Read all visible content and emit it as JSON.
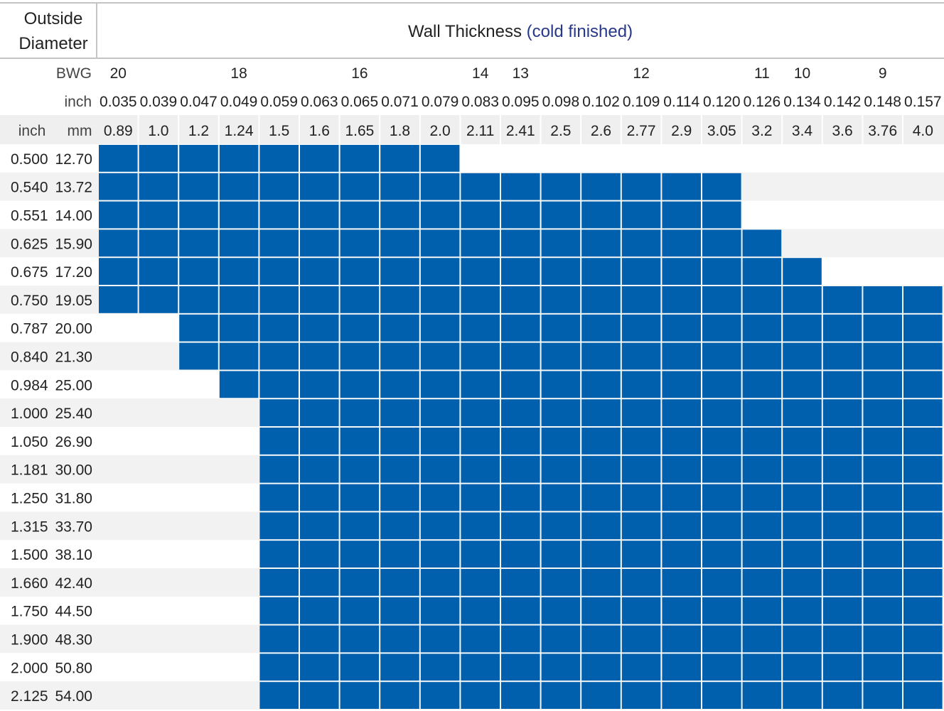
{
  "chart_data": {
    "type": "table",
    "title": "Wall Thickness",
    "title_note": "(cold finished)",
    "corner_label": [
      "Outside",
      "Diameter"
    ],
    "row_label_bwg": "BWG",
    "row_label_inch": "inch",
    "od_header_inch": "inch",
    "od_header_mm": "mm",
    "bwg": [
      "20",
      "",
      "",
      "18",
      "",
      "",
      "16",
      "",
      "",
      "14",
      "13",
      "",
      "",
      "12",
      "",
      "",
      "11",
      "10",
      "",
      "9",
      ""
    ],
    "wall_inch": [
      "0.035",
      "0.039",
      "0.047",
      "0.049",
      "0.059",
      "0.063",
      "0.065",
      "0.071",
      "0.079",
      "0.083",
      "0.095",
      "0.098",
      "0.102",
      "0.109",
      "0.114",
      "0.120",
      "0.126",
      "0.134",
      "0.142",
      "0.148",
      "0.157"
    ],
    "wall_mm": [
      "0.89",
      "1.0",
      "1.2",
      "1.24",
      "1.5",
      "1.6",
      "1.65",
      "1.8",
      "2.0",
      "2.11",
      "2.41",
      "2.5",
      "2.6",
      "2.77",
      "2.9",
      "3.05",
      "3.2",
      "3.4",
      "3.6",
      "3.76",
      "4.0"
    ],
    "rows": [
      {
        "inch": "0.500",
        "mm": "12.70",
        "available": [
          0,
          8
        ]
      },
      {
        "inch": "0.540",
        "mm": "13.72",
        "available": [
          0,
          15
        ]
      },
      {
        "inch": "0.551",
        "mm": "14.00",
        "available": [
          0,
          15
        ]
      },
      {
        "inch": "0.625",
        "mm": "15.90",
        "available": [
          0,
          16
        ]
      },
      {
        "inch": "0.675",
        "mm": "17.20",
        "available": [
          0,
          17
        ]
      },
      {
        "inch": "0.750",
        "mm": "19.05",
        "available": [
          0,
          20
        ]
      },
      {
        "inch": "0.787",
        "mm": "20.00",
        "available": [
          2,
          20
        ]
      },
      {
        "inch": "0.840",
        "mm": "21.30",
        "available": [
          2,
          20
        ]
      },
      {
        "inch": "0.984",
        "mm": "25.00",
        "available": [
          3,
          20
        ]
      },
      {
        "inch": "1.000",
        "mm": "25.40",
        "available": [
          4,
          20
        ]
      },
      {
        "inch": "1.050",
        "mm": "26.90",
        "available": [
          4,
          20
        ]
      },
      {
        "inch": "1.181",
        "mm": "30.00",
        "available": [
          4,
          20
        ]
      },
      {
        "inch": "1.250",
        "mm": "31.80",
        "available": [
          4,
          20
        ]
      },
      {
        "inch": "1.315",
        "mm": "33.70",
        "available": [
          4,
          20
        ]
      },
      {
        "inch": "1.500",
        "mm": "38.10",
        "available": [
          4,
          20
        ]
      },
      {
        "inch": "1.660",
        "mm": "42.40",
        "available": [
          4,
          20
        ]
      },
      {
        "inch": "1.750",
        "mm": "44.50",
        "available": [
          4,
          20
        ]
      },
      {
        "inch": "1.900",
        "mm": "48.30",
        "available": [
          4,
          20
        ]
      },
      {
        "inch": "2.000",
        "mm": "50.80",
        "available": [
          4,
          20
        ]
      },
      {
        "inch": "2.125",
        "mm": "54.00",
        "available": [
          4,
          20
        ]
      }
    ],
    "colors": {
      "available": "#0060ae",
      "alt_row": "#f2f2f2",
      "header_band": "#efefef",
      "rule": "#c4c4c4",
      "accent_text": "#27378a"
    }
  }
}
